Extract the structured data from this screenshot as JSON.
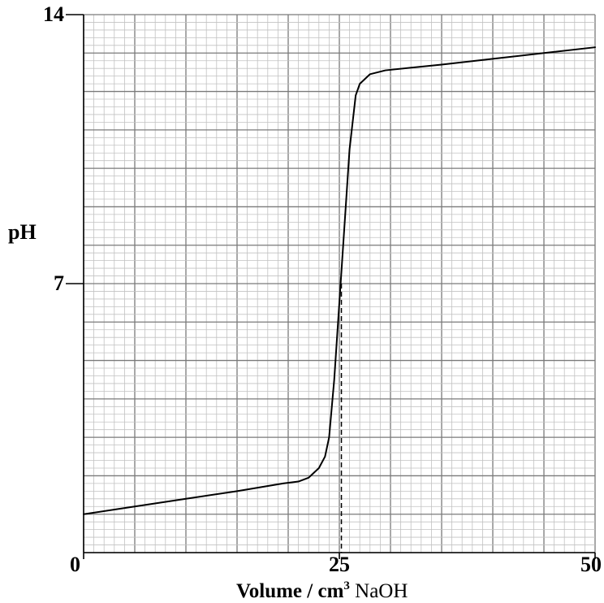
{
  "chart_data": {
    "type": "line",
    "title": "",
    "xlabel": {
      "main": "Volume / cm",
      "superscript": "3",
      "suffix": " NaOH"
    },
    "ylabel": "pH",
    "xlim": [
      0,
      50
    ],
    "ylim": [
      0,
      14
    ],
    "x_ticks": [
      {
        "value": 0,
        "label": "0"
      },
      {
        "value": 25,
        "label": "25"
      },
      {
        "value": 50,
        "label": "50"
      }
    ],
    "y_ticks": [
      {
        "value": 7,
        "label": "7"
      },
      {
        "value": 14,
        "label": "14"
      }
    ],
    "grid": true,
    "series": [
      {
        "color": "#000000",
        "points": [
          [
            0,
            1.0
          ],
          [
            5,
            1.2
          ],
          [
            10,
            1.4
          ],
          [
            15,
            1.6
          ],
          [
            19.5,
            1.8
          ],
          [
            21.0,
            1.85
          ],
          [
            22.0,
            1.95
          ],
          [
            23.0,
            2.2
          ],
          [
            23.6,
            2.5
          ],
          [
            24.0,
            3.0
          ],
          [
            24.5,
            4.5
          ],
          [
            25.0,
            6.5
          ],
          [
            25.5,
            8.5
          ],
          [
            26.0,
            10.5
          ],
          [
            26.6,
            11.9
          ],
          [
            27.0,
            12.2
          ],
          [
            28.0,
            12.45
          ],
          [
            29.5,
            12.55
          ],
          [
            35,
            12.7
          ],
          [
            40,
            12.85
          ],
          [
            45,
            13.0
          ],
          [
            50,
            13.15
          ]
        ]
      }
    ],
    "annotations": [
      {
        "type": "dashed-vertical",
        "x": 25.2,
        "y_from": 0,
        "y_to": 7.0,
        "color": "#000000"
      }
    ]
  }
}
